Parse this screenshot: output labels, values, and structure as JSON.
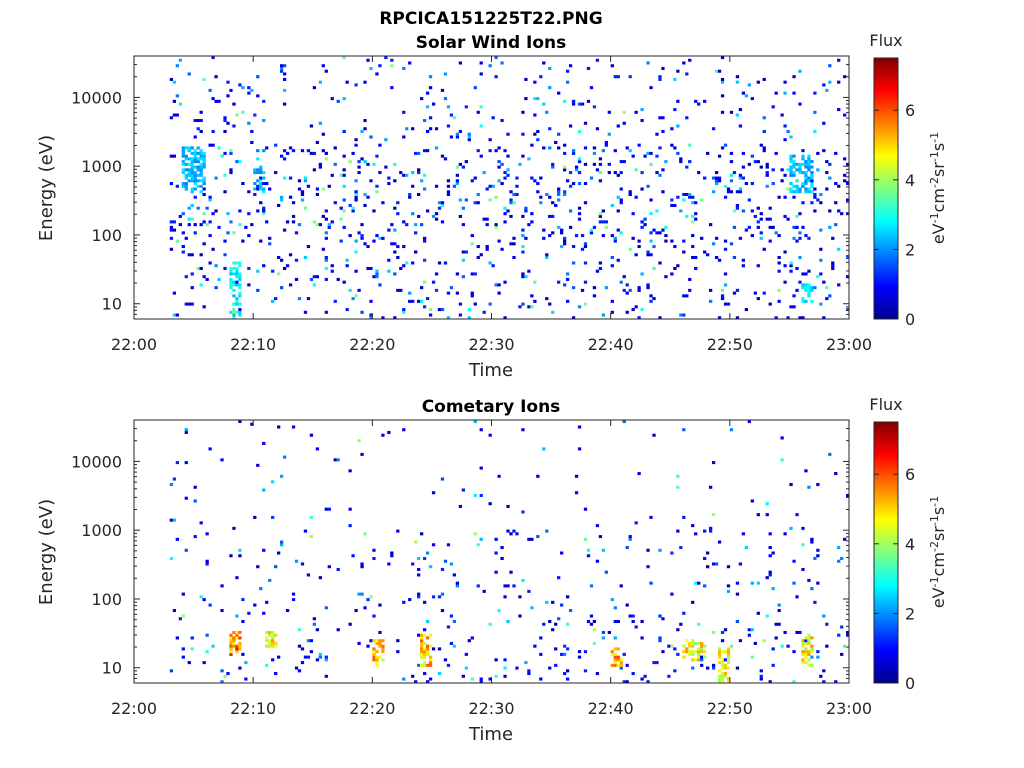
{
  "figure": {
    "title": "RPCICA151225T22.PNG"
  },
  "colorbar_title": "Flux",
  "colorbar_label": "eV-1cm-2sr-1s-1",
  "chart_data": [
    {
      "type": "heatmap",
      "title": "Solar Wind Ions",
      "xlabel": "Time",
      "ylabel": "Energy (eV)",
      "y_scale": "log",
      "xlim": [
        "22:00",
        "23:00"
      ],
      "ylim": [
        6,
        40000
      ],
      "x_ticks": [
        "22:00",
        "22:10",
        "22:20",
        "22:30",
        "22:40",
        "22:50",
        "23:00"
      ],
      "y_ticks": [
        "10",
        "100",
        "1000",
        "10000"
      ],
      "colorbar": {
        "label": "Flux",
        "range": [
          0,
          7.5
        ],
        "ticks": [
          "0",
          "2",
          "4",
          "6"
        ],
        "colormap": "jet"
      },
      "x_data_extent": [
        "22:03",
        "23:00"
      ],
      "features": [
        {
          "time_range": [
            "22:04",
            "22:06"
          ],
          "energy_range": [
            400,
            2000
          ],
          "flux": 2.5
        },
        {
          "time_range": [
            "22:10",
            "22:11"
          ],
          "energy_range": [
            400,
            900
          ],
          "flux": 2.5
        },
        {
          "time_range": [
            "22:08",
            "22:09"
          ],
          "energy_range": [
            6,
            40
          ],
          "flux": 3.0
        },
        {
          "time_range": [
            "22:55",
            "22:57"
          ],
          "energy_range": [
            400,
            1500
          ],
          "flux": 2.5
        },
        {
          "time_range": [
            "22:56",
            "22:57"
          ],
          "energy_range": [
            10,
            20
          ],
          "flux": 3.0
        }
      ]
    },
    {
      "type": "heatmap",
      "title": "Cometary Ions",
      "xlabel": "Time",
      "ylabel": "Energy (eV)",
      "y_scale": "log",
      "xlim": [
        "22:00",
        "23:00"
      ],
      "ylim": [
        6,
        40000
      ],
      "x_ticks": [
        "22:00",
        "22:10",
        "22:20",
        "22:30",
        "22:40",
        "22:50",
        "23:00"
      ],
      "y_ticks": [
        "10",
        "100",
        "1000",
        "10000"
      ],
      "colorbar": {
        "label": "Flux",
        "range": [
          0,
          7.5
        ],
        "ticks": [
          "0",
          "2",
          "4",
          "6"
        ],
        "colormap": "jet"
      },
      "x_data_extent": [
        "22:03",
        "23:00"
      ],
      "features": [
        {
          "time_range": [
            "22:08",
            "22:09"
          ],
          "energy_range": [
            15,
            35
          ],
          "flux": 6.0
        },
        {
          "time_range": [
            "22:11",
            "22:12"
          ],
          "energy_range": [
            20,
            35
          ],
          "flux": 5.0
        },
        {
          "time_range": [
            "22:20",
            "22:21"
          ],
          "energy_range": [
            10,
            25
          ],
          "flux": 5.5
        },
        {
          "time_range": [
            "22:24",
            "22:25"
          ],
          "energy_range": [
            10,
            30
          ],
          "flux": 5.5
        },
        {
          "time_range": [
            "22:40",
            "22:41"
          ],
          "energy_range": [
            10,
            20
          ],
          "flux": 5.5
        },
        {
          "time_range": [
            "22:46",
            "22:48"
          ],
          "energy_range": [
            12,
            25
          ],
          "flux": 5.0
        },
        {
          "time_range": [
            "22:49",
            "22:50"
          ],
          "energy_range": [
            6,
            20
          ],
          "flux": 5.0
        },
        {
          "time_range": [
            "22:56",
            "22:57"
          ],
          "energy_range": [
            10,
            30
          ],
          "flux": 5.0
        }
      ]
    }
  ]
}
